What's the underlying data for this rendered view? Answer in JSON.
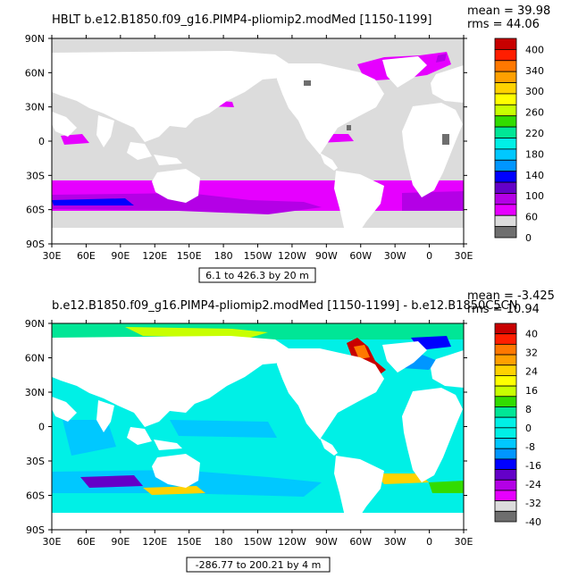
{
  "panels": [
    {
      "title": "HBLT b.e12.B1850.f09_g16.PIMP4-pliomip2.modMed [1150-1199]",
      "stats": [
        "mean = 39.98",
        "rms = 44.06"
      ],
      "range_note": "6.1 to 426.3 by 20 m",
      "colorbar": {
        "labels": [
          "400",
          "340",
          "300",
          "260",
          "220",
          "180",
          "140",
          "100",
          "60",
          "0"
        ],
        "colors": [
          "#c80000",
          "#ff1e00",
          "#ff7800",
          "#ffa000",
          "#ffd200",
          "#ffff00",
          "#c8ff00",
          "#32dc00",
          "#00e696",
          "#00f0e6",
          "#00c8ff",
          "#0096ff",
          "#0000ff",
          "#6400c8",
          "#b400e6",
          "#e600ff",
          "#dcdcdc",
          "#6e6e6e"
        ]
      }
    },
    {
      "title": "b.e12.B1850.f09_g16.PIMP4-pliomip2.modMed [1150-1199] - b.e12.B1850C5CN",
      "stats": [
        "mean = -3.425",
        "rms = 10.94"
      ],
      "range_note": "-286.77 to 200.21 by 4 m",
      "colorbar": {
        "labels": [
          "40",
          "32",
          "24",
          "16",
          "8",
          "0",
          "-8",
          "-16",
          "-24",
          "-32",
          "-40"
        ],
        "colors": [
          "#c80000",
          "#ff1e00",
          "#ff7800",
          "#ffa000",
          "#ffd200",
          "#ffff00",
          "#c8ff00",
          "#32dc00",
          "#00e696",
          "#00f0e6",
          "#00f0e6",
          "#00c8ff",
          "#0096ff",
          "#0000ff",
          "#6400c8",
          "#b400e6",
          "#e600ff",
          "#dcdcdc",
          "#6e6e6e"
        ]
      }
    }
  ],
  "axes": {
    "lat_labels": [
      "90N",
      "60N",
      "30N",
      "0",
      "30S",
      "60S",
      "90S"
    ],
    "lon_labels": [
      "30E",
      "60E",
      "90E",
      "120E",
      "150E",
      "180",
      "150W",
      "120W",
      "90W",
      "60W",
      "30W",
      "0",
      "30E"
    ]
  },
  "chart_data": [
    {
      "type": "heatmap",
      "title": "HBLT b.e12.B1850.f09_g16.PIMP4-pliomip2.modMed [1150-1199]",
      "subtitle": "6.1 to 426.3 by 20 m",
      "summary": {
        "mean": 39.98,
        "rms": 44.06
      },
      "xlim": [
        "30E",
        "30E"
      ],
      "ylim": [
        "90S",
        "90N"
      ],
      "colorbar_ticks": [
        400,
        340,
        300,
        260,
        220,
        180,
        140,
        100,
        60,
        0
      ],
      "legend": "right"
    },
    {
      "type": "heatmap",
      "title": "b.e12.B1850.f09_g16.PIMP4-pliomip2.modMed [1150-1199] - b.e12.B1850C5CN",
      "subtitle": "-286.77 to 200.21 by 4 m",
      "summary": {
        "mean": -3.425,
        "rms": 10.94
      },
      "xlim": [
        "30E",
        "30E"
      ],
      "ylim": [
        "90S",
        "90N"
      ],
      "colorbar_ticks": [
        40,
        32,
        24,
        16,
        8,
        0,
        -8,
        -16,
        -24,
        -32,
        -40
      ],
      "legend": "right"
    }
  ]
}
